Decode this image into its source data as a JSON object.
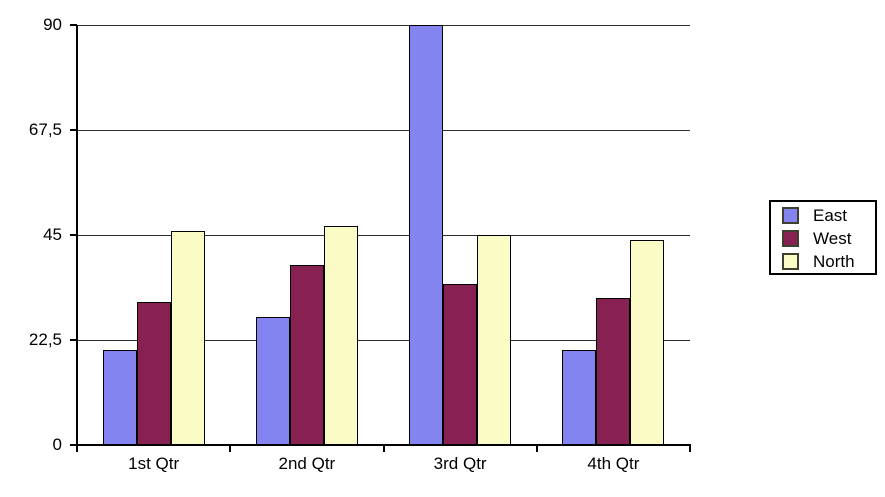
{
  "chart_data": {
    "type": "bar",
    "title": "",
    "xlabel": "",
    "ylabel": "",
    "categories": [
      "1st Qtr",
      "2nd Qtr",
      "3rd Qtr",
      "4th Qtr"
    ],
    "series": [
      {
        "name": "East",
        "color": "#8484F0",
        "values": [
          20.4,
          27.4,
          90,
          20.4
        ]
      },
      {
        "name": "West",
        "color": "#862152",
        "values": [
          30.6,
          38.6,
          34.6,
          31.6
        ]
      },
      {
        "name": "North",
        "color": "#FBFBC6",
        "values": [
          45.9,
          46.9,
          45,
          43.9
        ]
      }
    ],
    "ylim": [
      0,
      90
    ],
    "y_ticks": [
      {
        "value": 90,
        "label": "90"
      },
      {
        "value": 67.5,
        "label": "67,5"
      },
      {
        "value": 45,
        "label": "45"
      },
      {
        "value": 22.5,
        "label": "22,5"
      },
      {
        "value": 0,
        "label": "0"
      }
    ],
    "grid": true,
    "legend_position": "right",
    "colors": {
      "background": "#FFFFFF",
      "axis": "#000000",
      "gridline": "#2E2E2E",
      "text": "#000000",
      "bar_border": "#000000",
      "legend_border": "#000000",
      "legend_swatch_border": "#3F3F2D"
    }
  }
}
